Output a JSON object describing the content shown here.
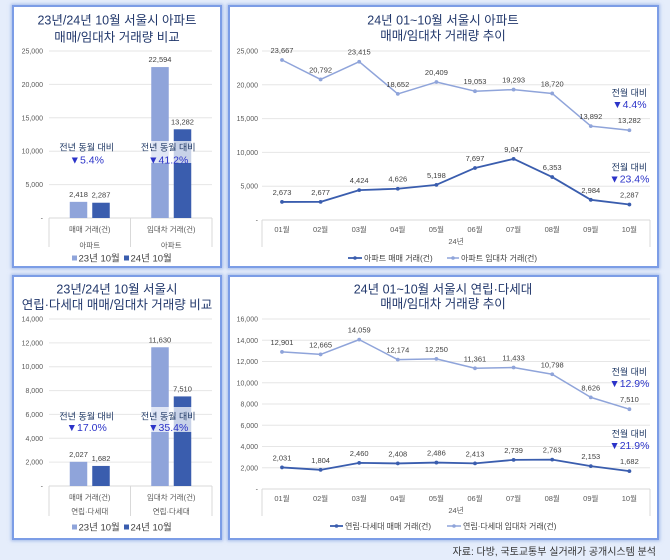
{
  "colors": {
    "series_light": "#8fa4da",
    "series_dark": "#3a5dae",
    "gridline": "#e6e6e6",
    "axis": "#d9d9d9",
    "annotation_label": "#1f3864",
    "annotation_value": "#2b33c8"
  },
  "source": "자료: 다방, 국토교통부 실거래가 공개시스템 분석",
  "chart_data": [
    {
      "type": "bar",
      "title": [
        "23년/24년 10월 서울시 아파트",
        "매매/임대차 거래량 비교"
      ],
      "categories": [
        "매매 거래(건)",
        "임대차 거래(건)"
      ],
      "category_groups": [
        "아파트",
        "아파트"
      ],
      "series": [
        {
          "name": "23년 10월",
          "values": [
            2418,
            22594
          ],
          "labels": [
            "2,418",
            "22,594"
          ]
        },
        {
          "name": "24년 10월",
          "values": [
            2287,
            13282
          ],
          "labels": [
            "2,287",
            "13,282"
          ]
        }
      ],
      "ylim": [
        0,
        25000
      ],
      "y_ticks": [
        0,
        5000,
        10000,
        15000,
        20000,
        25000
      ],
      "y_tick_labels": [
        "-",
        "5,000",
        "10,000",
        "15,000",
        "20,000",
        "25,000"
      ],
      "grid": true,
      "legend": "bottom",
      "annotations": [
        {
          "category": 0,
          "label": "전년 동월 대비",
          "value": "▼5.4%"
        },
        {
          "category": 1,
          "label": "전년 동월 대비",
          "value": "▼41.2%"
        }
      ]
    },
    {
      "type": "line",
      "title": [
        "24년 01~10월 서울시 아파트",
        "매매/임대차 거래량 추이"
      ],
      "categories": [
        "01월",
        "02월",
        "03월",
        "04월",
        "05월",
        "06월",
        "07월",
        "08월",
        "09월",
        "10월"
      ],
      "xlabel": "24년",
      "series": [
        {
          "name": "아파트 매매 거래(건)",
          "values": [
            2673,
            2677,
            4424,
            4626,
            5198,
            7697,
            9047,
            6353,
            2984,
            2287
          ],
          "labels": [
            "2,673",
            "2,677",
            "4,424",
            "4,626",
            "5,198",
            "7,697",
            "9,047",
            "6,353",
            "2,984",
            "2,287"
          ]
        },
        {
          "name": "아파트 임대차 거래(건)",
          "values": [
            23667,
            20792,
            23415,
            18652,
            20409,
            19053,
            19293,
            18720,
            13892,
            13282
          ],
          "labels": [
            "23,667",
            "20,792",
            "23,415",
            "18,652",
            "20,409",
            "19,053",
            "19,293",
            "18,720",
            "13,892",
            "13,282"
          ]
        }
      ],
      "ylim": [
        0,
        25000
      ],
      "y_ticks": [
        0,
        5000,
        10000,
        15000,
        20000,
        25000
      ],
      "y_tick_labels": [
        "-",
        "5,000",
        "10,000",
        "15,000",
        "20,000",
        "25,000"
      ],
      "grid": true,
      "legend": "bottom",
      "annotations": [
        {
          "series": 1,
          "label": "전월 대비",
          "value": "▼4.4%"
        },
        {
          "series": 0,
          "label": "전월 대비",
          "value": "▼23.4%"
        }
      ]
    },
    {
      "type": "bar",
      "title": [
        "23년/24년 10월 서울시",
        "연립·다세대 매매/임대차 거래량 비교"
      ],
      "categories": [
        "매매 거래(건)",
        "임대차 거래(건)"
      ],
      "category_groups": [
        "연립·다세대",
        "연립·다세대"
      ],
      "series": [
        {
          "name": "23년 10월",
          "values": [
            2027,
            11630
          ],
          "labels": [
            "2,027",
            "11,630"
          ]
        },
        {
          "name": "24년 10월",
          "values": [
            1682,
            7510
          ],
          "labels": [
            "1,682",
            "7,510"
          ]
        }
      ],
      "ylim": [
        0,
        14000
      ],
      "y_ticks": [
        0,
        2000,
        4000,
        6000,
        8000,
        10000,
        12000,
        14000
      ],
      "y_tick_labels": [
        "-",
        "2,000",
        "4,000",
        "6,000",
        "8,000",
        "10,000",
        "12,000",
        "14,000"
      ],
      "grid": true,
      "legend": "bottom",
      "annotations": [
        {
          "category": 0,
          "label": "전년 동월 대비",
          "value": "▼17.0%"
        },
        {
          "category": 1,
          "label": "전년 동월 대비",
          "value": "▼35.4%"
        }
      ]
    },
    {
      "type": "line",
      "title": [
        "24년 01~10월 서울시 연립·다세대",
        "매매/임대차 거래량 추이"
      ],
      "categories": [
        "01월",
        "02월",
        "03월",
        "04월",
        "05월",
        "06월",
        "07월",
        "08월",
        "09월",
        "10월"
      ],
      "xlabel": "24년",
      "series": [
        {
          "name": "연립·다세대 매매 거래(건)",
          "values": [
            2031,
            1804,
            2460,
            2408,
            2486,
            2413,
            2739,
            2763,
            2153,
            1682
          ],
          "labels": [
            "2,031",
            "1,804",
            "2,460",
            "2,408",
            "2,486",
            "2,413",
            "2,739",
            "2,763",
            "2,153",
            "1,682"
          ]
        },
        {
          "name": "연립·다세대 임대차 거래(건)",
          "values": [
            12901,
            12665,
            14059,
            12174,
            12250,
            11361,
            11433,
            10798,
            8626,
            7510
          ],
          "labels": [
            "12,901",
            "12,665",
            "14,059",
            "12,174",
            "12,250",
            "11,361",
            "11,433",
            "10,798",
            "8,626",
            "7,510"
          ]
        }
      ],
      "ylim": [
        0,
        16000
      ],
      "y_ticks": [
        0,
        2000,
        4000,
        6000,
        8000,
        10000,
        12000,
        14000,
        16000
      ],
      "y_tick_labels": [
        "-",
        "2,000",
        "4,000",
        "6,000",
        "8,000",
        "10,000",
        "12,000",
        "14,000",
        "16,000"
      ],
      "grid": true,
      "legend": "bottom",
      "annotations": [
        {
          "series": 1,
          "label": "전월 대비",
          "value": "▼12.9%"
        },
        {
          "series": 0,
          "label": "전월 대비",
          "value": "▼21.9%"
        }
      ]
    }
  ]
}
